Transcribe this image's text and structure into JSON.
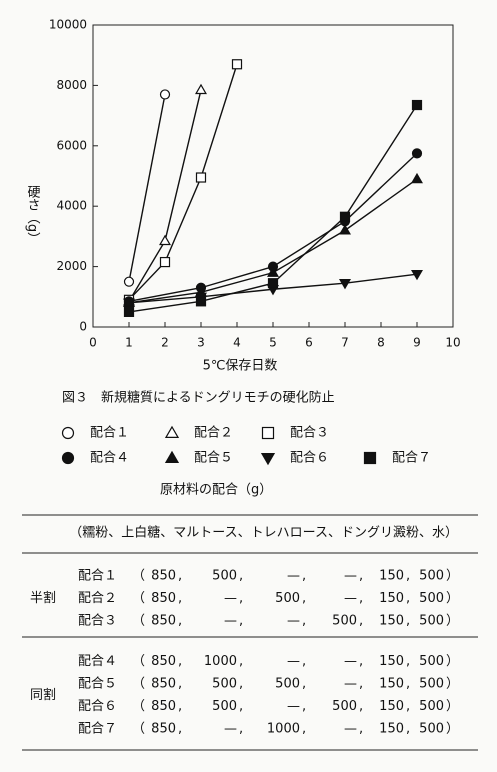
{
  "chart_data": {
    "type": "line",
    "x_label": "5℃保存日数",
    "y_label": "硬さ（g）",
    "xlim": [
      0,
      10
    ],
    "xticks": [
      0,
      1,
      2,
      3,
      4,
      5,
      6,
      7,
      8,
      9,
      10
    ],
    "ylim": [
      0,
      10000
    ],
    "yticks": [
      0,
      2000,
      4000,
      6000,
      8000,
      10000
    ],
    "grid": false,
    "color": "#111111",
    "series": [
      {
        "name": "配合１",
        "marker": "circle",
        "filled": false,
        "x": [
          1,
          2
        ],
        "values": [
          1500,
          7700
        ]
      },
      {
        "name": "配合２",
        "marker": "triangle",
        "filled": false,
        "x": [
          1,
          2,
          3
        ],
        "values": [
          850,
          2850,
          7850
        ]
      },
      {
        "name": "配合３",
        "marker": "square",
        "filled": false,
        "x": [
          1,
          2,
          3,
          4
        ],
        "values": [
          900,
          2150,
          4950,
          8700
        ]
      },
      {
        "name": "配合４",
        "marker": "circle",
        "filled": true,
        "x": [
          1,
          3,
          5,
          7,
          9
        ],
        "values": [
          850,
          1300,
          2000,
          3500,
          5750
        ]
      },
      {
        "name": "配合５",
        "marker": "triangle",
        "filled": true,
        "x": [
          1,
          3,
          5,
          7,
          9
        ],
        "values": [
          800,
          1150,
          1800,
          3200,
          4900
        ]
      },
      {
        "name": "配合６",
        "marker": "triangle-down",
        "filled": true,
        "x": [
          1,
          3,
          5,
          7,
          9
        ],
        "values": [
          800,
          1000,
          1250,
          1450,
          1750
        ]
      },
      {
        "name": "配合７",
        "marker": "square",
        "filled": true,
        "x": [
          1,
          3,
          5,
          7,
          9
        ],
        "values": [
          500,
          850,
          1450,
          3650,
          7350
        ]
      }
    ]
  },
  "caption": "図３　新規糖質によるドングリモチの硬化防止",
  "table": {
    "title": "原材料の配合（g）",
    "header": "（糯粉、上白糖、マルトース、トレハロース、ドングリ澱粉、水）",
    "open": "（",
    "separator": ",",
    "close": "）",
    "groups": [
      {
        "label": "半割",
        "rows": [
          {
            "label": "配合１",
            "cells": [
              "850",
              "500",
              "—",
              "—",
              "150",
              "500"
            ]
          },
          {
            "label": "配合２",
            "cells": [
              "850",
              "—",
              "500",
              "—",
              "150",
              "500"
            ]
          },
          {
            "label": "配合３",
            "cells": [
              "850",
              "—",
              "—",
              "500",
              "150",
              "500"
            ]
          }
        ]
      },
      {
        "label": "同割",
        "rows": [
          {
            "label": "配合４",
            "cells": [
              "850",
              "1000",
              "—",
              "—",
              "150",
              "500"
            ]
          },
          {
            "label": "配合５",
            "cells": [
              "850",
              "500",
              "500",
              "—",
              "150",
              "500"
            ]
          },
          {
            "label": "配合６",
            "cells": [
              "850",
              "500",
              "—",
              "500",
              "150",
              "500"
            ]
          },
          {
            "label": "配合７",
            "cells": [
              "850",
              "—",
              "1000",
              "—",
              "150",
              "500"
            ]
          }
        ]
      }
    ]
  }
}
